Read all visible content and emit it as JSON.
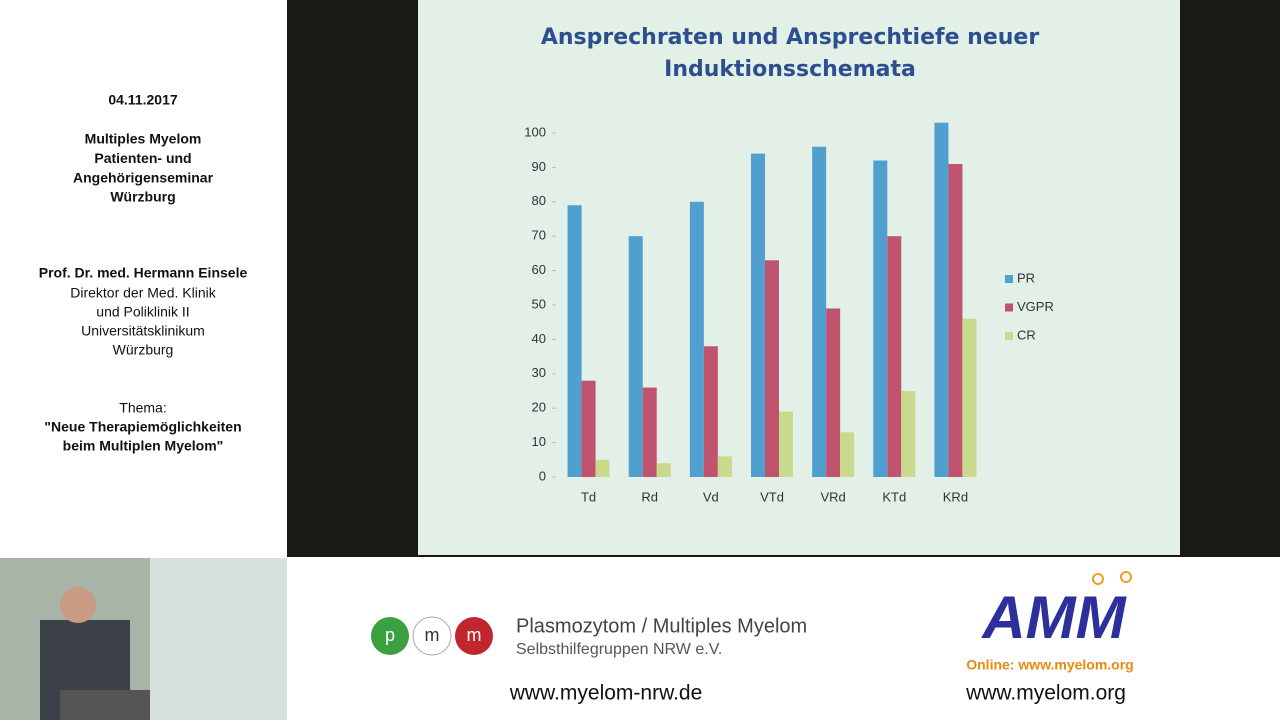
{
  "sidebar": {
    "date": "04.11.2017",
    "event": [
      "Multiples Myelom",
      "Patienten- und",
      "Angehörigenseminar",
      "Würzburg"
    ],
    "speaker": "Prof. Dr. med. Hermann Einsele",
    "role": [
      "Direktor der Med. Klinik",
      "und Poliklinik II",
      "Universitätsklinikum",
      "Würzburg"
    ],
    "topic_label": "Thema:",
    "topic": [
      "\"Neue Therapiemöglichkeiten",
      "beim Multiplen Myelom\""
    ]
  },
  "chart_data": {
    "type": "bar",
    "title": "Ansprechraten und Ansprechtiefe neuer Induktionsschemata",
    "categories": [
      "Td",
      "Rd",
      "Vd",
      "VTd",
      "VRd",
      "KTd",
      "KRd"
    ],
    "series": [
      {
        "name": "PR",
        "color": "#4f9fcf",
        "values": [
          79,
          70,
          80,
          94,
          96,
          92,
          103
        ]
      },
      {
        "name": "VGPR",
        "color": "#c0546e",
        "values": [
          28,
          26,
          38,
          63,
          49,
          70,
          91
        ]
      },
      {
        "name": "CR",
        "color": "#c9da8c",
        "values": [
          5,
          4,
          6,
          19,
          13,
          25,
          46
        ]
      }
    ],
    "ylim": [
      0,
      100
    ],
    "yticks": [
      0,
      10,
      20,
      30,
      40,
      50,
      60,
      70,
      80,
      90,
      100
    ],
    "legend": "right"
  },
  "footer": {
    "pmm_letters": [
      "p",
      "m",
      "m"
    ],
    "org_name": "Plasmozytom / Multiples Myelom",
    "org_sub": "Selbsthilfegruppen  NRW e.V.",
    "url_left": "www.myelom-nrw.de",
    "amm_logo": "AMM",
    "amm_online": "Online: www.myelom.org",
    "url_right": "www.myelom.org"
  }
}
